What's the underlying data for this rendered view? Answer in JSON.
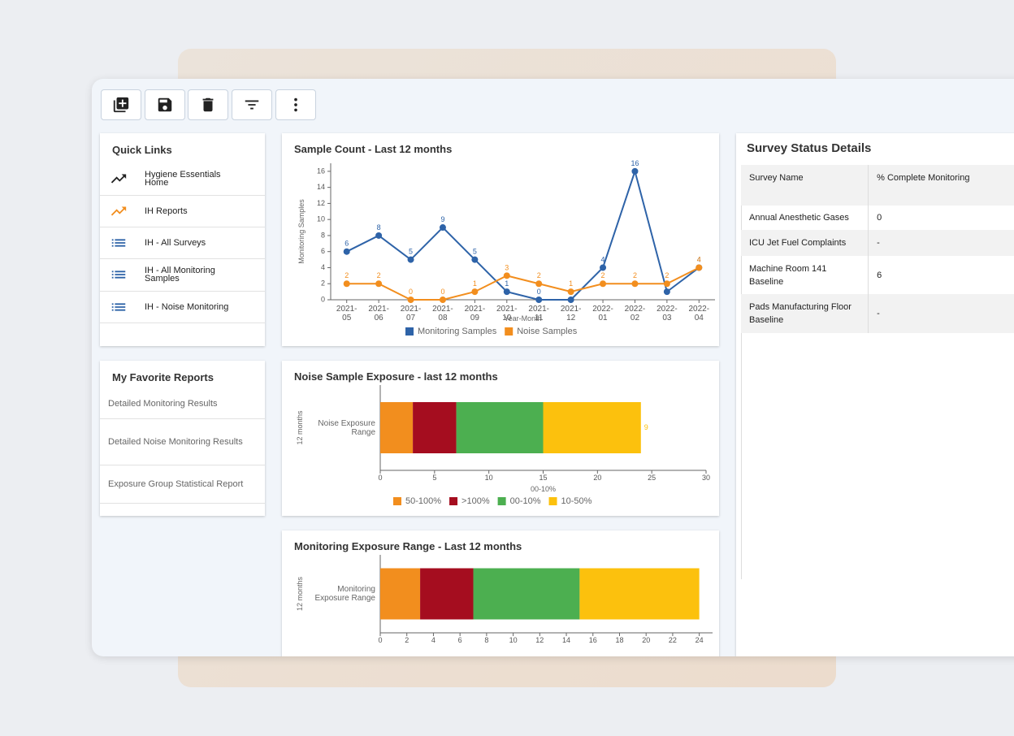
{
  "quick_links": {
    "title": "Quick Links",
    "items": [
      "Hygiene Essentials Home",
      "IH Reports",
      "IH - All Surveys",
      "IH - All Monitoring Samples",
      "IH - Noise Monitoring"
    ]
  },
  "favorite_reports": {
    "title": "My Favorite Reports",
    "items": [
      "Detailed Monitoring Results",
      "Detailed Noise Monitoring Results",
      "Exposure Group Statistical Report"
    ]
  },
  "survey_status": {
    "title": "Survey Status Details",
    "columns": [
      "Survey Name",
      "% Complete Monitoring"
    ],
    "rows": [
      [
        "Annual Anesthetic Gases",
        "0"
      ],
      [
        "ICU Jet Fuel Complaints",
        "-"
      ],
      [
        "Machine Room 141 Baseline",
        "6"
      ],
      [
        "Pads Manufacturing Floor Baseline",
        "-"
      ]
    ]
  },
  "chart_data": [
    {
      "type": "line",
      "title": "Sample Count - Last 12 months",
      "y_label": "Monitoring Samples",
      "x_label": "Year-Month",
      "categories": [
        "2021-05",
        "2021-06",
        "2021-07",
        "2021-08",
        "2021-09",
        "2021-10",
        "2021-11",
        "2021-12",
        "2022-01",
        "2022-02",
        "2022-03",
        "2022-04"
      ],
      "series": [
        {
          "name": "Monitoring Samples",
          "color": "#2e63a8",
          "values": [
            6,
            8,
            5,
            9,
            5,
            1,
            0,
            0,
            4,
            16,
            1,
            4
          ]
        },
        {
          "name": "Noise Samples",
          "color": "#f28e1e",
          "values": [
            2,
            2,
            0,
            0,
            1,
            3,
            2,
            1,
            2,
            2,
            2,
            4
          ]
        }
      ],
      "ylim": [
        0,
        17
      ],
      "yticks": [
        0,
        2,
        4,
        6,
        8,
        10,
        12,
        14,
        16
      ],
      "data_labels": true,
      "legend": "bottom"
    },
    {
      "type": "bar",
      "orientation": "horizontal",
      "stacked": true,
      "title": "Noise Sample Exposure - last 12 months",
      "y_label": "12 months",
      "x_label": "00-10%",
      "categories": [
        "Noise Exposure Range"
      ],
      "series": [
        {
          "name": "50-100%",
          "color": "#f28e1e",
          "values": [
            3
          ]
        },
        {
          "name": ">100%",
          "color": "#a50d1f",
          "values": [
            4
          ]
        },
        {
          "name": "00-10%",
          "color": "#4caf50",
          "values": [
            8
          ]
        },
        {
          "name": "10-50%",
          "color": "#fcc10d",
          "values": [
            9
          ]
        }
      ],
      "xlim": [
        0,
        30
      ],
      "xticks": [
        0,
        5,
        10,
        15,
        20,
        25,
        30
      ],
      "data_labels": true,
      "legend": "bottom"
    },
    {
      "type": "bar",
      "orientation": "horizontal",
      "stacked": true,
      "title": "Monitoring Exposure Range - Last 12 months",
      "y_label": "12 months",
      "categories": [
        "Monitoring Exposure Range"
      ],
      "series": [
        {
          "color": "#f28e1e",
          "values": [
            3
          ]
        },
        {
          "color": "#a50d1f",
          "values": [
            4
          ]
        },
        {
          "color": "#4caf50",
          "values": [
            8
          ]
        },
        {
          "color": "#fcc10d",
          "values": [
            9
          ]
        }
      ],
      "xlim": [
        0,
        25
      ],
      "xticks": [
        0,
        2,
        4,
        6,
        8,
        10,
        12,
        14,
        16,
        18,
        20,
        22,
        24
      ],
      "data_labels": false
    }
  ]
}
